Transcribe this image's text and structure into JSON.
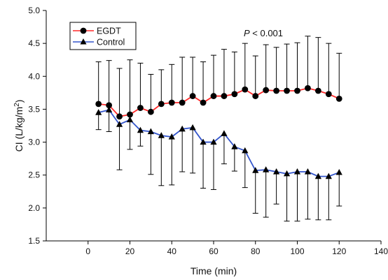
{
  "chart_data": {
    "type": "line",
    "title": "",
    "xlabel": "Time (min)",
    "ylabel_main": "CI (L/kg/m",
    "ylabel_sup": "2",
    "ylabel_close": ")",
    "xlim": [
      -20,
      140
    ],
    "ylim": [
      1.5,
      5.0
    ],
    "xticks": [
      0,
      20,
      40,
      60,
      80,
      100,
      120,
      140
    ],
    "yticks": [
      "1.5",
      "2.0",
      "2.5",
      "3.0",
      "3.5",
      "4.0",
      "4.5",
      "5.0"
    ],
    "annotation": {
      "italic": "P",
      "rest": " < 0.001"
    },
    "legend_position": "top-left",
    "x": [
      5,
      10,
      15,
      20,
      25,
      30,
      35,
      40,
      45,
      50,
      55,
      60,
      65,
      70,
      75,
      80,
      85,
      90,
      95,
      100,
      105,
      110,
      115,
      120
    ],
    "series": [
      {
        "name": "EGDT",
        "color": "#ff2a2a",
        "marker": "circle",
        "values": [
          3.58,
          3.56,
          3.39,
          3.42,
          3.52,
          3.46,
          3.58,
          3.6,
          3.6,
          3.7,
          3.6,
          3.7,
          3.7,
          3.73,
          3.8,
          3.7,
          3.79,
          3.78,
          3.78,
          3.78,
          3.82,
          3.78,
          3.73,
          3.66
        ],
        "upper": [
          4.22,
          4.24,
          4.12,
          4.25,
          4.2,
          4.03,
          4.1,
          4.18,
          4.29,
          4.29,
          4.22,
          4.32,
          4.41,
          4.37,
          4.5,
          4.31,
          4.48,
          4.44,
          4.49,
          4.51,
          4.61,
          4.59,
          4.5,
          4.35
        ]
      },
      {
        "name": "Control",
        "color": "#3355cc",
        "marker": "triangle",
        "values": [
          3.45,
          3.49,
          3.27,
          3.34,
          3.18,
          3.16,
          3.1,
          3.08,
          3.2,
          3.22,
          3.0,
          3.0,
          3.13,
          2.93,
          2.87,
          2.57,
          2.58,
          2.55,
          2.52,
          2.55,
          2.55,
          2.48,
          2.48,
          2.54
        ],
        "lower": [
          3.19,
          3.16,
          2.58,
          2.89,
          2.94,
          2.51,
          2.34,
          2.35,
          2.55,
          2.53,
          2.3,
          2.28,
          2.67,
          2.56,
          2.31,
          1.92,
          1.86,
          2.06,
          1.8,
          1.8,
          1.83,
          1.82,
          1.82,
          2.03
        ]
      }
    ]
  }
}
